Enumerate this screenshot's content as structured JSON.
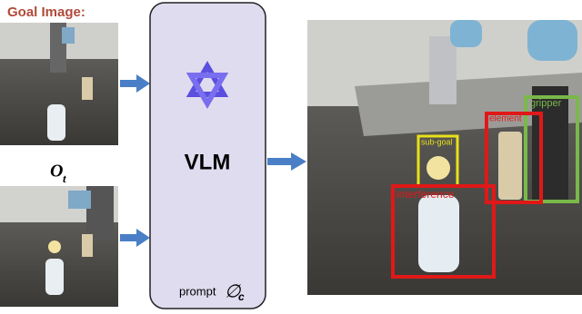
{
  "goal_image_label": "Goal Image:",
  "observation_label": {
    "symbol": "O",
    "subscript": "t"
  },
  "vlm": {
    "label": "VLM",
    "prompt": "prompt",
    "prompt_symbol": "∅",
    "prompt_subscript": "c"
  },
  "detections": [
    {
      "label": "gripper"
    },
    {
      "label": "element"
    },
    {
      "label": "sub-goal"
    },
    {
      "label": "interference"
    }
  ]
}
